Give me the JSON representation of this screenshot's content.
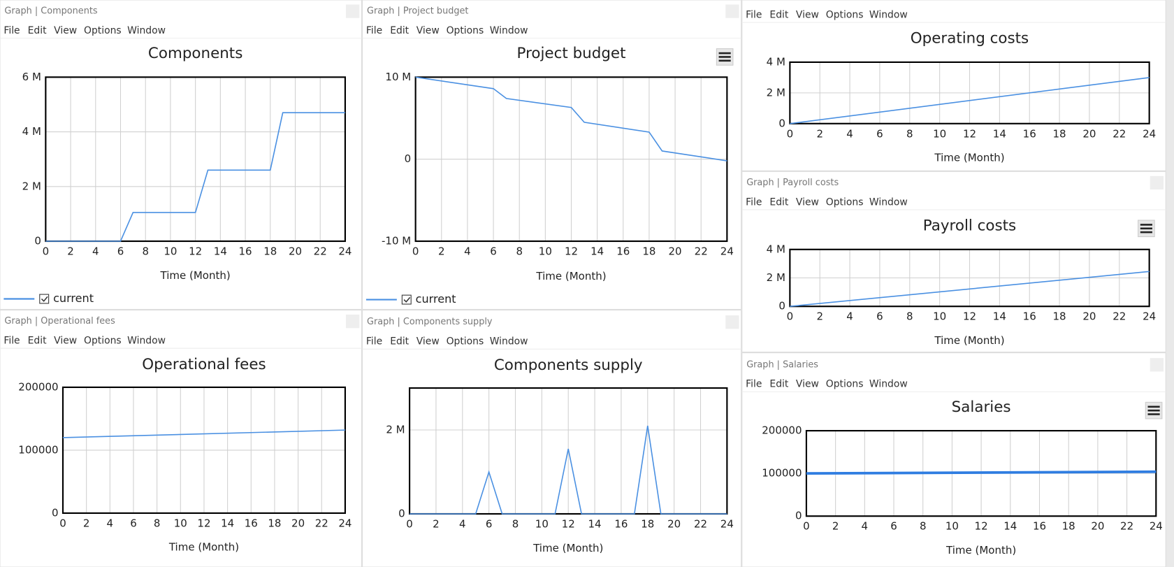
{
  "menu": [
    "File",
    "Edit",
    "View",
    "Options",
    "Window"
  ],
  "windows": [
    {
      "title": "Graph | Components"
    },
    {
      "title": "Graph | Project budget"
    },
    {
      "title": null
    },
    {
      "title": "Graph | Payroll costs"
    },
    {
      "title": "Graph | Operational fees"
    },
    {
      "title": "Graph | Components supply"
    },
    {
      "title": "Graph | Salaries"
    }
  ],
  "chart_data": [
    {
      "type": "line",
      "title": "Components",
      "x_label": "Time (Month)",
      "grid": true,
      "x": [
        0,
        6,
        7,
        12,
        13,
        18,
        19,
        24
      ],
      "series": [
        {
          "name": "current",
          "color": "#4a90e2",
          "values": [
            0,
            0,
            1050000,
            1050000,
            2600000,
            2600000,
            4700000,
            4700000
          ]
        }
      ],
      "xlim": [
        0,
        24
      ],
      "xticks": [
        0,
        2,
        4,
        6,
        8,
        10,
        12,
        14,
        16,
        18,
        20,
        22,
        24
      ],
      "ylim": [
        0,
        6000000
      ],
      "yticks": [
        0,
        {
          "value": 2000000,
          "label": "2 M"
        },
        {
          "value": 4000000,
          "label": "4 M"
        },
        {
          "value": 6000000,
          "label": "6 M"
        }
      ]
    },
    {
      "type": "line",
      "title": "Project budget",
      "x_label": "Time (Month)",
      "grid": true,
      "x": [
        0,
        6,
        7,
        12,
        13,
        18,
        19,
        24
      ],
      "series": [
        {
          "name": "current",
          "color": "#4a90e2",
          "values": [
            10000000,
            8600000,
            7400000,
            6300000,
            4500000,
            3300000,
            1000000,
            -200000
          ]
        }
      ],
      "xlim": [
        0,
        24
      ],
      "xticks": [
        0,
        2,
        4,
        6,
        8,
        10,
        12,
        14,
        16,
        18,
        20,
        22,
        24
      ],
      "ylim": [
        -10000000,
        10000000
      ],
      "yticks": [
        {
          "value": -10000000,
          "label": "-10 M"
        },
        0,
        {
          "value": 10000000,
          "label": "10 M"
        }
      ]
    },
    {
      "type": "line",
      "title": "Operating costs",
      "x_label": "Time (Month)",
      "grid": true,
      "x": [
        0,
        24
      ],
      "values": [
        0,
        3000000
      ],
      "color": "#4a90e2",
      "xlim": [
        0,
        24
      ],
      "xticks": [
        0,
        2,
        4,
        6,
        8,
        10,
        12,
        14,
        16,
        18,
        20,
        22,
        24
      ],
      "ylim": [
        0,
        4000000
      ],
      "yticks": [
        0,
        {
          "value": 2000000,
          "label": "2 M"
        },
        {
          "value": 4000000,
          "label": "4 M"
        }
      ]
    },
    {
      "type": "line",
      "title": "Payroll costs",
      "x_label": "Time (Month)",
      "grid": true,
      "x": [
        0,
        24
      ],
      "values": [
        0,
        2450000
      ],
      "color": "#4a90e2",
      "xlim": [
        0,
        24
      ],
      "xticks": [
        0,
        2,
        4,
        6,
        8,
        10,
        12,
        14,
        16,
        18,
        20,
        22,
        24
      ],
      "ylim": [
        0,
        4000000
      ],
      "yticks": [
        0,
        {
          "value": 2000000,
          "label": "2 M"
        },
        {
          "value": 4000000,
          "label": "4 M"
        }
      ]
    },
    {
      "type": "line",
      "title": "Operational fees",
      "x_label": "Time (Month)",
      "grid": true,
      "x": [
        0,
        24
      ],
      "values": [
        120000,
        132000
      ],
      "color": "#4a90e2",
      "xlim": [
        0,
        24
      ],
      "xticks": [
        0,
        2,
        4,
        6,
        8,
        10,
        12,
        14,
        16,
        18,
        20,
        22,
        24
      ],
      "ylim": [
        0,
        200000
      ],
      "yticks": [
        0,
        100000,
        200000
      ]
    },
    {
      "type": "line",
      "title": "Components supply",
      "x_label": "Time (Month)",
      "grid": true,
      "x": [
        0,
        5,
        6,
        7,
        11,
        12,
        13,
        17,
        18,
        19,
        24
      ],
      "values": [
        0,
        0,
        1000000,
        0,
        0,
        1550000,
        0,
        0,
        2100000,
        0,
        0
      ],
      "color": "#4a90e2",
      "xlim": [
        0,
        24
      ],
      "xticks": [
        0,
        2,
        4,
        6,
        8,
        10,
        12,
        14,
        16,
        18,
        20,
        22,
        24
      ],
      "ylim": [
        0,
        3000000
      ],
      "yticks": [
        0,
        {
          "value": 2000000,
          "label": "2 M"
        }
      ]
    },
    {
      "type": "line",
      "title": "Salaries",
      "x_label": "Time (Month)",
      "grid": true,
      "x": [
        0,
        24
      ],
      "values": [
        100000,
        104000
      ],
      "color": "#2f7de1",
      "xlim": [
        0,
        24
      ],
      "xticks": [
        0,
        2,
        4,
        6,
        8,
        10,
        12,
        14,
        16,
        18,
        20,
        22,
        24
      ],
      "ylim": [
        0,
        200000
      ],
      "yticks": [
        0,
        100000,
        200000
      ]
    }
  ]
}
